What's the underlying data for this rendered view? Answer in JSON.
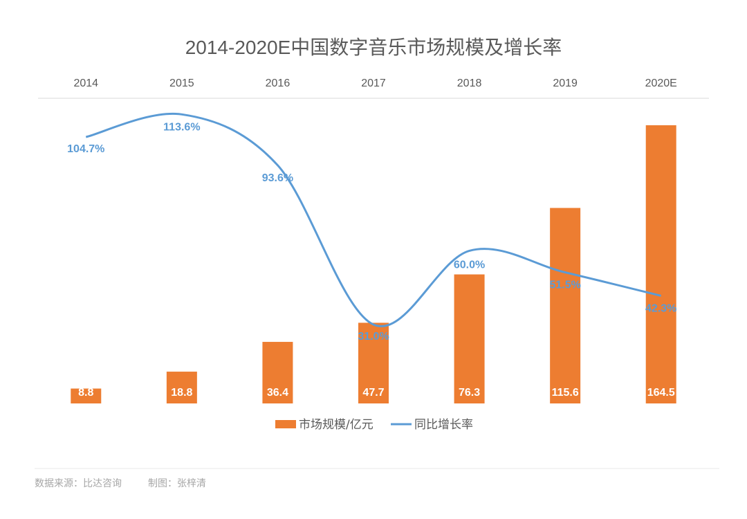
{
  "colors": {
    "bar": "#ed7d31",
    "line": "#5b9bd5",
    "text": "#595959",
    "muted": "#a6a6a6",
    "gridline": "#d9d9d9"
  },
  "chart_data": {
    "type": "bar",
    "title": "2014-2020E中国数字音乐市场规模及增长率",
    "categories": [
      "2014",
      "2015",
      "2016",
      "2017",
      "2018",
      "2019",
      "2020E"
    ],
    "series": [
      {
        "name": "市场规模/亿元",
        "type": "bar",
        "values": [
          8.8,
          18.8,
          36.4,
          47.7,
          76.3,
          115.6,
          164.5
        ],
        "labels": [
          "8.8",
          "18.8",
          "36.4",
          "47.7",
          "76.3",
          "115.6",
          "164.5"
        ]
      },
      {
        "name": "同比增长率",
        "type": "line",
        "values": [
          104.7,
          113.6,
          93.6,
          31.0,
          60.0,
          51.5,
          42.3
        ],
        "labels": [
          "104.7%",
          "113.6%",
          "93.6%",
          "31.0%",
          "60.0%",
          "51.5%",
          "42.3%"
        ]
      }
    ],
    "xaxis_position": "top",
    "legend_position": "bottom",
    "grid": false
  },
  "footer": {
    "source": "数据来源：比达咨询",
    "author": "制图：张梓清"
  }
}
